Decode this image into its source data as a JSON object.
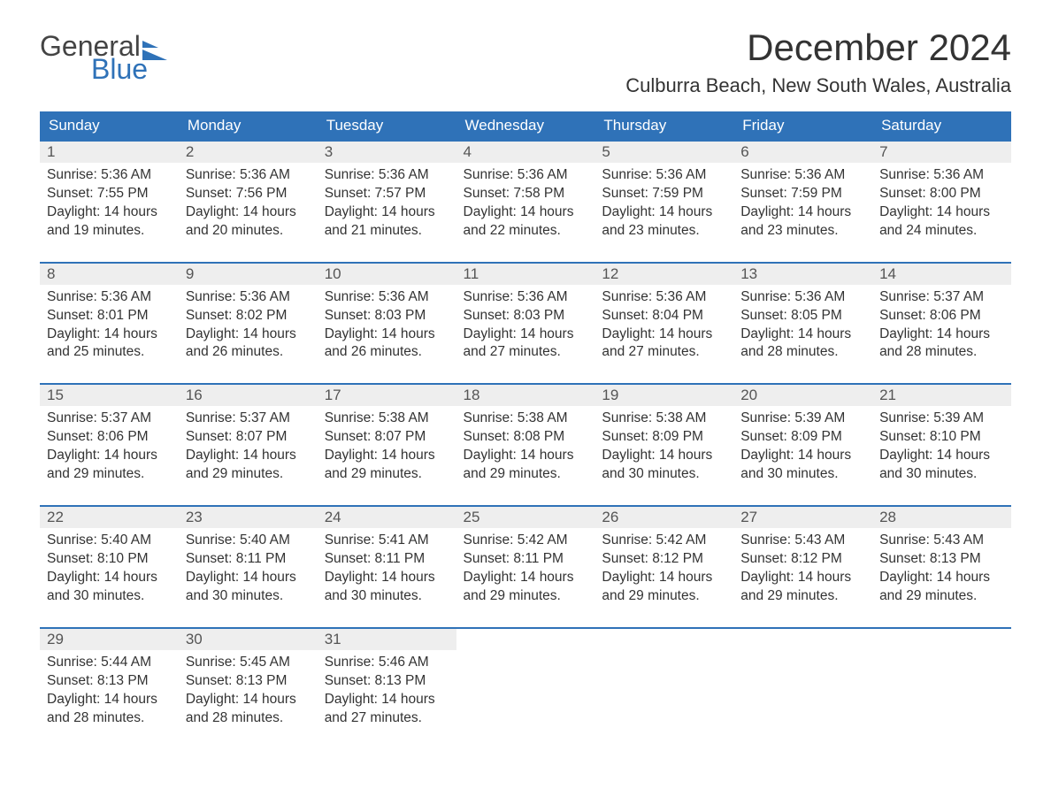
{
  "brand": {
    "word1": "General",
    "word2": "Blue",
    "accent_color": "#2f72b8"
  },
  "title": "December 2024",
  "location": "Culburra Beach, New South Wales, Australia",
  "colors": {
    "header_bg": "#2f72b8",
    "header_text": "#ffffff",
    "row_divider": "#2f72b8",
    "daynum_bg": "#eeeeee",
    "body_text": "#333333",
    "page_bg": "#ffffff"
  },
  "typography": {
    "title_fontsize": 42,
    "location_fontsize": 22,
    "dow_fontsize": 17,
    "daynum_fontsize": 17,
    "body_fontsize": 15.5
  },
  "layout": {
    "columns": 7,
    "rows": 5
  },
  "days_of_week": [
    "Sunday",
    "Monday",
    "Tuesday",
    "Wednesday",
    "Thursday",
    "Friday",
    "Saturday"
  ],
  "labels": {
    "sunrise": "Sunrise:",
    "sunset": "Sunset:",
    "daylight": "Daylight:"
  },
  "weeks": [
    [
      {
        "n": "1",
        "sunrise": "5:36 AM",
        "sunset": "7:55 PM",
        "daylight": "14 hours and 19 minutes."
      },
      {
        "n": "2",
        "sunrise": "5:36 AM",
        "sunset": "7:56 PM",
        "daylight": "14 hours and 20 minutes."
      },
      {
        "n": "3",
        "sunrise": "5:36 AM",
        "sunset": "7:57 PM",
        "daylight": "14 hours and 21 minutes."
      },
      {
        "n": "4",
        "sunrise": "5:36 AM",
        "sunset": "7:58 PM",
        "daylight": "14 hours and 22 minutes."
      },
      {
        "n": "5",
        "sunrise": "5:36 AM",
        "sunset": "7:59 PM",
        "daylight": "14 hours and 23 minutes."
      },
      {
        "n": "6",
        "sunrise": "5:36 AM",
        "sunset": "7:59 PM",
        "daylight": "14 hours and 23 minutes."
      },
      {
        "n": "7",
        "sunrise": "5:36 AM",
        "sunset": "8:00 PM",
        "daylight": "14 hours and 24 minutes."
      }
    ],
    [
      {
        "n": "8",
        "sunrise": "5:36 AM",
        "sunset": "8:01 PM",
        "daylight": "14 hours and 25 minutes."
      },
      {
        "n": "9",
        "sunrise": "5:36 AM",
        "sunset": "8:02 PM",
        "daylight": "14 hours and 26 minutes."
      },
      {
        "n": "10",
        "sunrise": "5:36 AM",
        "sunset": "8:03 PM",
        "daylight": "14 hours and 26 minutes."
      },
      {
        "n": "11",
        "sunrise": "5:36 AM",
        "sunset": "8:03 PM",
        "daylight": "14 hours and 27 minutes."
      },
      {
        "n": "12",
        "sunrise": "5:36 AM",
        "sunset": "8:04 PM",
        "daylight": "14 hours and 27 minutes."
      },
      {
        "n": "13",
        "sunrise": "5:36 AM",
        "sunset": "8:05 PM",
        "daylight": "14 hours and 28 minutes."
      },
      {
        "n": "14",
        "sunrise": "5:37 AM",
        "sunset": "8:06 PM",
        "daylight": "14 hours and 28 minutes."
      }
    ],
    [
      {
        "n": "15",
        "sunrise": "5:37 AM",
        "sunset": "8:06 PM",
        "daylight": "14 hours and 29 minutes."
      },
      {
        "n": "16",
        "sunrise": "5:37 AM",
        "sunset": "8:07 PM",
        "daylight": "14 hours and 29 minutes."
      },
      {
        "n": "17",
        "sunrise": "5:38 AM",
        "sunset": "8:07 PM",
        "daylight": "14 hours and 29 minutes."
      },
      {
        "n": "18",
        "sunrise": "5:38 AM",
        "sunset": "8:08 PM",
        "daylight": "14 hours and 29 minutes."
      },
      {
        "n": "19",
        "sunrise": "5:38 AM",
        "sunset": "8:09 PM",
        "daylight": "14 hours and 30 minutes."
      },
      {
        "n": "20",
        "sunrise": "5:39 AM",
        "sunset": "8:09 PM",
        "daylight": "14 hours and 30 minutes."
      },
      {
        "n": "21",
        "sunrise": "5:39 AM",
        "sunset": "8:10 PM",
        "daylight": "14 hours and 30 minutes."
      }
    ],
    [
      {
        "n": "22",
        "sunrise": "5:40 AM",
        "sunset": "8:10 PM",
        "daylight": "14 hours and 30 minutes."
      },
      {
        "n": "23",
        "sunrise": "5:40 AM",
        "sunset": "8:11 PM",
        "daylight": "14 hours and 30 minutes."
      },
      {
        "n": "24",
        "sunrise": "5:41 AM",
        "sunset": "8:11 PM",
        "daylight": "14 hours and 30 minutes."
      },
      {
        "n": "25",
        "sunrise": "5:42 AM",
        "sunset": "8:11 PM",
        "daylight": "14 hours and 29 minutes."
      },
      {
        "n": "26",
        "sunrise": "5:42 AM",
        "sunset": "8:12 PM",
        "daylight": "14 hours and 29 minutes."
      },
      {
        "n": "27",
        "sunrise": "5:43 AM",
        "sunset": "8:12 PM",
        "daylight": "14 hours and 29 minutes."
      },
      {
        "n": "28",
        "sunrise": "5:43 AM",
        "sunset": "8:13 PM",
        "daylight": "14 hours and 29 minutes."
      }
    ],
    [
      {
        "n": "29",
        "sunrise": "5:44 AM",
        "sunset": "8:13 PM",
        "daylight": "14 hours and 28 minutes."
      },
      {
        "n": "30",
        "sunrise": "5:45 AM",
        "sunset": "8:13 PM",
        "daylight": "14 hours and 28 minutes."
      },
      {
        "n": "31",
        "sunrise": "5:46 AM",
        "sunset": "8:13 PM",
        "daylight": "14 hours and 27 minutes."
      },
      null,
      null,
      null,
      null
    ]
  ]
}
